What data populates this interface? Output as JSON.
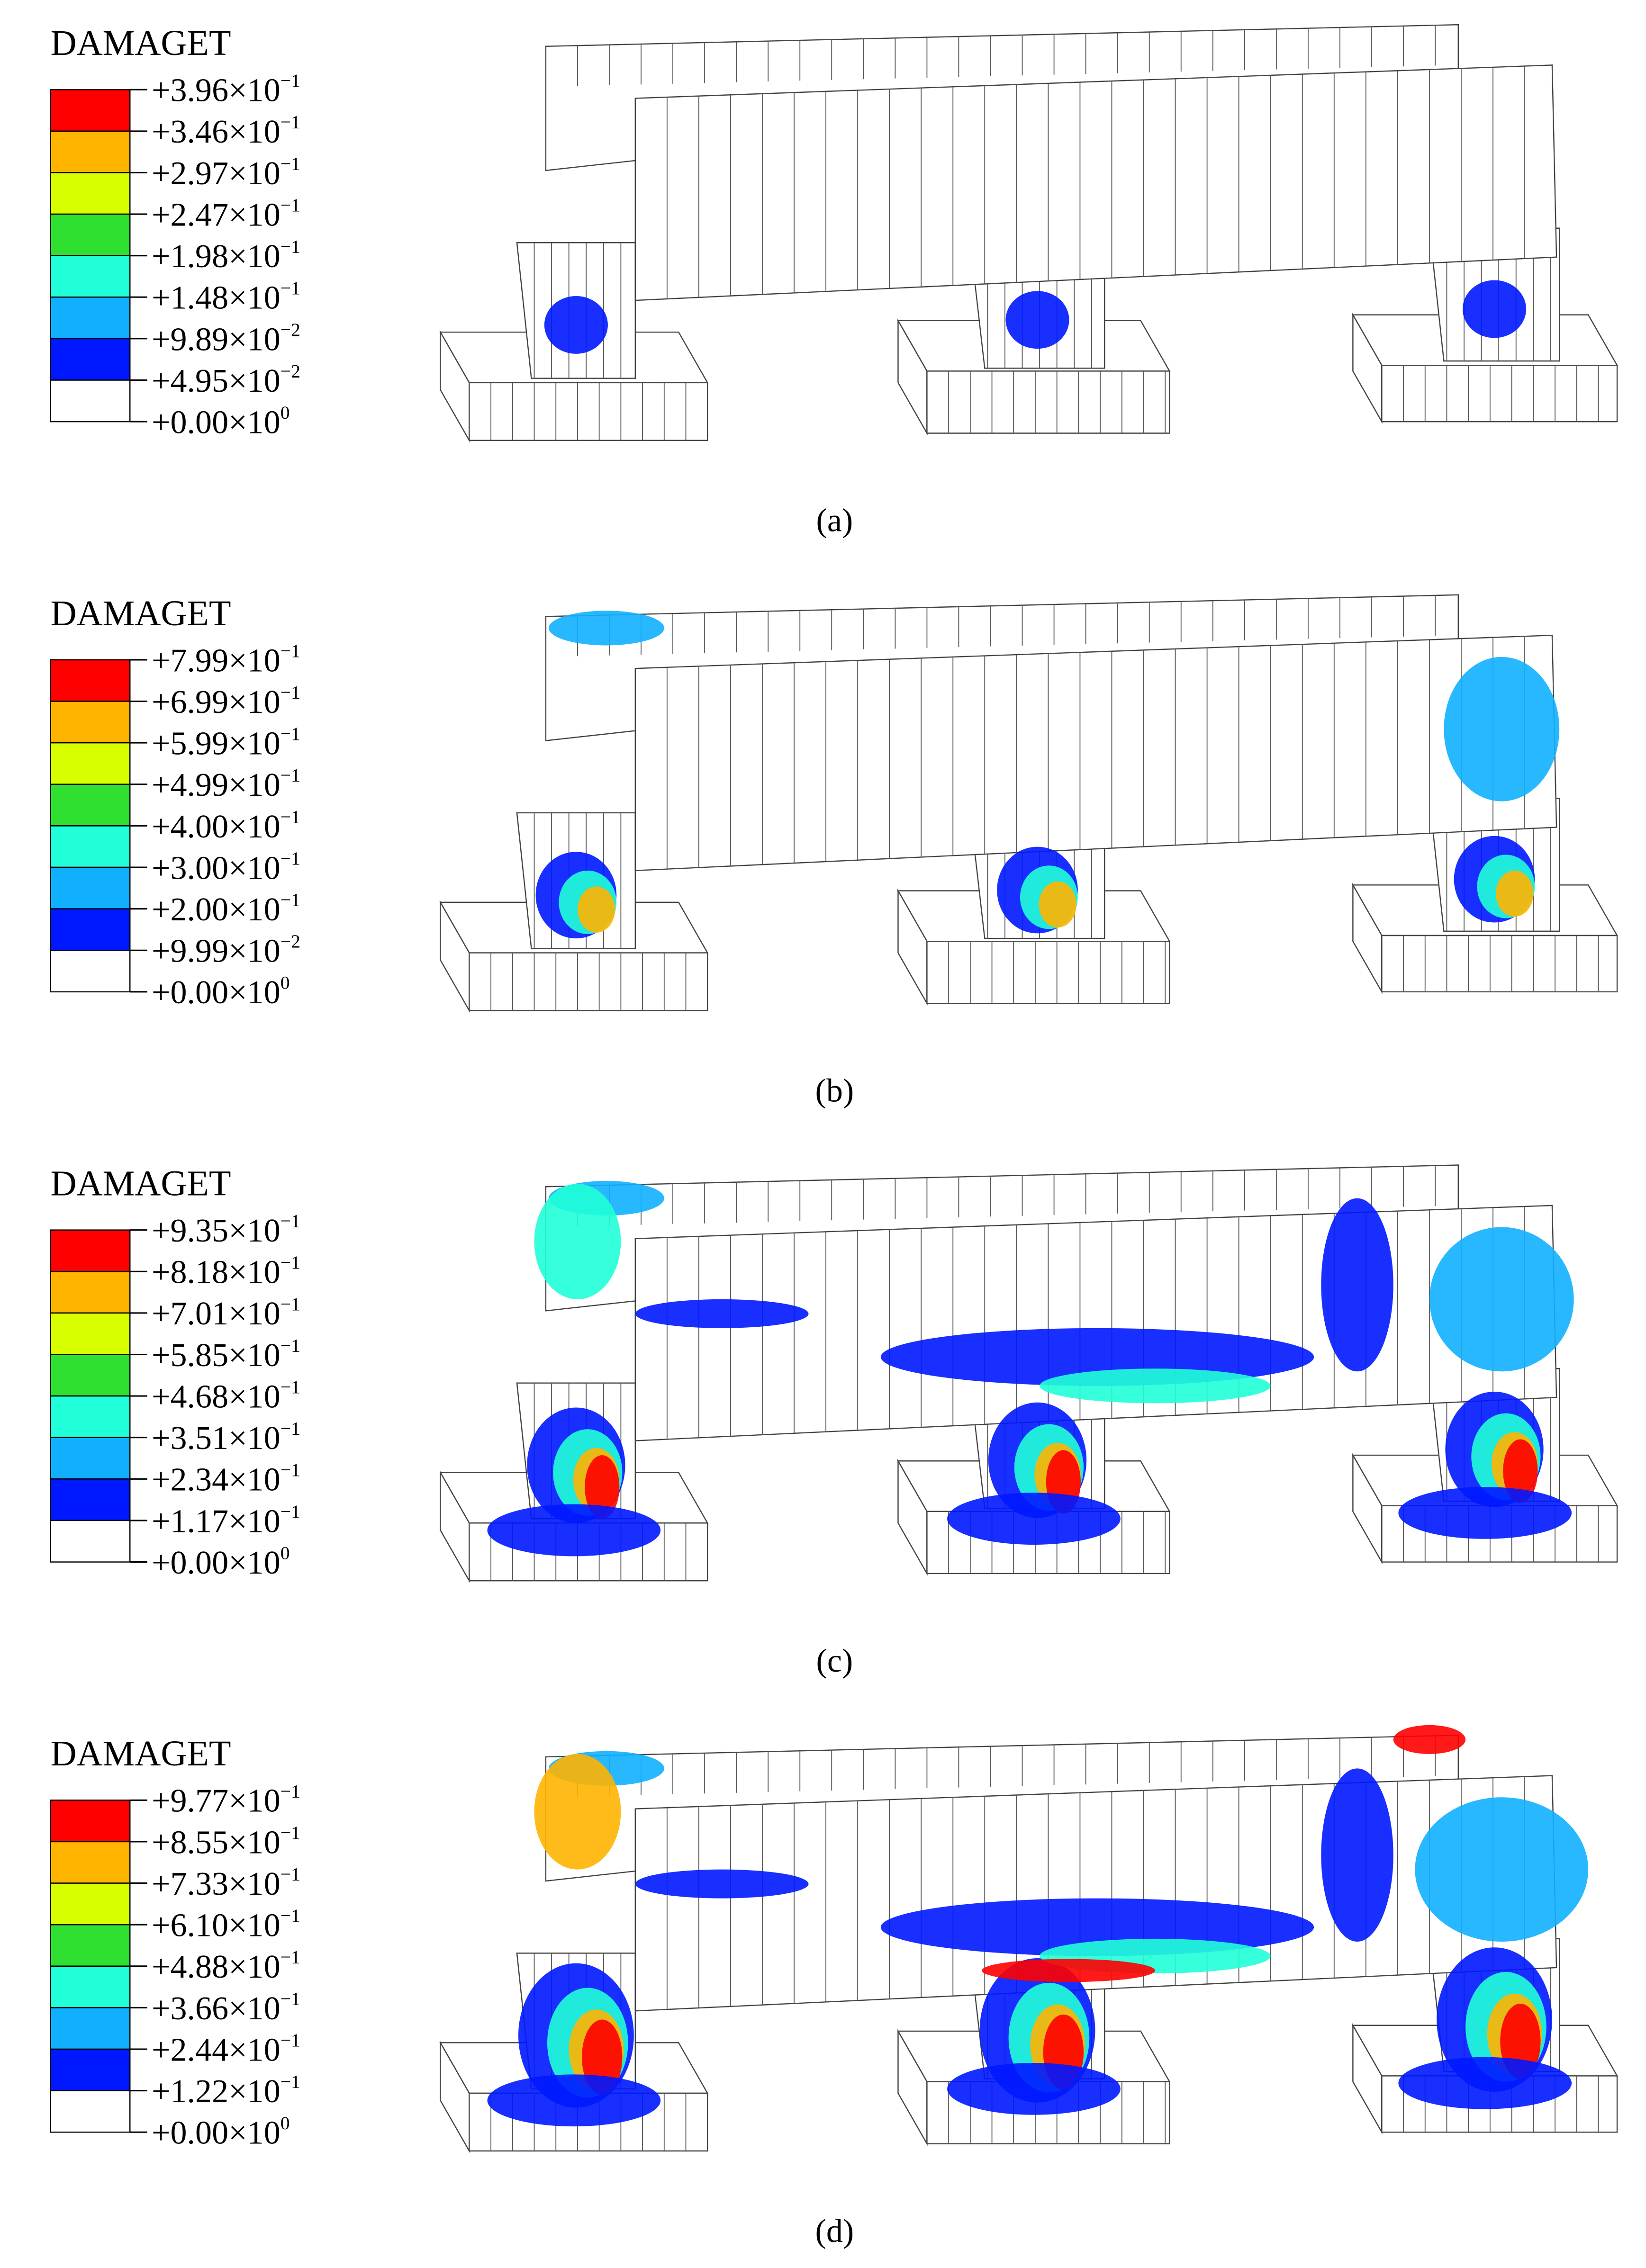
{
  "panels": [
    {
      "title": "DAMAGET",
      "caption": "(a)",
      "legend": [
        {
          "text": "+3.96×10",
          "exponent": "−1"
        },
        {
          "text": "+3.46×10",
          "exponent": "−1"
        },
        {
          "text": "+2.97×10",
          "exponent": "−1"
        },
        {
          "text": "+2.47×10",
          "exponent": "−1"
        },
        {
          "text": "+1.98×10",
          "exponent": "−1"
        },
        {
          "text": "+1.48×10",
          "exponent": "−1"
        },
        {
          "text": "+9.89×10",
          "exponent": "−2"
        },
        {
          "text": "+4.95×10",
          "exponent": "−2"
        },
        {
          "text": "+0.00×10",
          "exponent": "0"
        }
      ]
    },
    {
      "title": "DAMAGET",
      "caption": "(b)",
      "legend": [
        {
          "text": "+7.99×10",
          "exponent": "−1"
        },
        {
          "text": "+6.99×10",
          "exponent": "−1"
        },
        {
          "text": "+5.99×10",
          "exponent": "−1"
        },
        {
          "text": "+4.99×10",
          "exponent": "−1"
        },
        {
          "text": "+4.00×10",
          "exponent": "−1"
        },
        {
          "text": "+3.00×10",
          "exponent": "−1"
        },
        {
          "text": "+2.00×10",
          "exponent": "−1"
        },
        {
          "text": "+9.99×10",
          "exponent": "−2"
        },
        {
          "text": "+0.00×10",
          "exponent": "0"
        }
      ]
    },
    {
      "title": "DAMAGET",
      "caption": "(c)",
      "legend": [
        {
          "text": "+9.35×10",
          "exponent": "−1"
        },
        {
          "text": "+8.18×10",
          "exponent": "−1"
        },
        {
          "text": "+7.01×10",
          "exponent": "−1"
        },
        {
          "text": "+5.85×10",
          "exponent": "−1"
        },
        {
          "text": "+4.68×10",
          "exponent": "−1"
        },
        {
          "text": "+3.51×10",
          "exponent": "−1"
        },
        {
          "text": "+2.34×10",
          "exponent": "−1"
        },
        {
          "text": "+1.17×10",
          "exponent": "−1"
        },
        {
          "text": "+0.00×10",
          "exponent": "0"
        }
      ]
    },
    {
      "title": "DAMAGET",
      "caption": "(d)",
      "legend": [
        {
          "text": "+9.77×10",
          "exponent": "−1"
        },
        {
          "text": "+8.55×10",
          "exponent": "−1"
        },
        {
          "text": "+7.33×10",
          "exponent": "−1"
        },
        {
          "text": "+6.10×10",
          "exponent": "−1"
        },
        {
          "text": "+4.88×10",
          "exponent": "−1"
        },
        {
          "text": "+3.66×10",
          "exponent": "−1"
        },
        {
          "text": "+2.44×10",
          "exponent": "−1"
        },
        {
          "text": "+1.22×10",
          "exponent": "−1"
        },
        {
          "text": "+0.00×10",
          "exponent": "0"
        }
      ]
    }
  ]
}
